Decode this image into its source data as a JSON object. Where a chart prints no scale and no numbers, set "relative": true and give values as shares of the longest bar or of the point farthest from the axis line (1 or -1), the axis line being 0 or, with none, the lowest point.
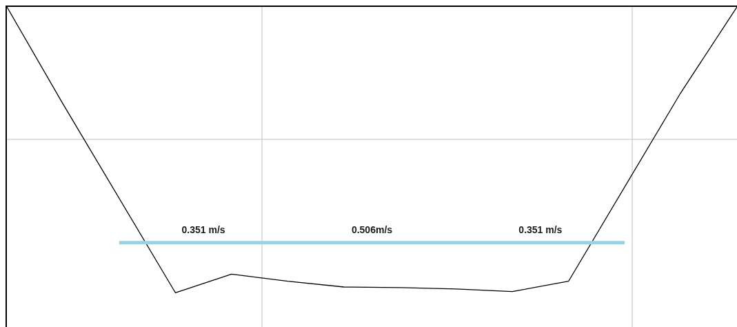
{
  "chart_data": {
    "type": "line",
    "relative": true,
    "categories": [
      null,
      null,
      null,
      null,
      null,
      null,
      null,
      null,
      null,
      null,
      null,
      null,
      null,
      null
    ],
    "series": [
      {
        "color": "#000000",
        "values": [
          1,
          0.66,
          null,
          0,
          0.065,
          0.04,
          0.02,
          0.018,
          0.013,
          0.004,
          0.04,
          null,
          0.7,
          1
        ]
      },
      {
        "color": "#92d5e6",
        "values": [
          null,
          null,
          0.175,
          0.175,
          0.175,
          0.175,
          0.175,
          0.175,
          0.175,
          0.175,
          0.175,
          0.175,
          null,
          null
        ]
      }
    ],
    "annotations": [
      "0.351 m/s",
      "0.506m/s",
      "0.351 m/s"
    ],
    "grid": true,
    "tick_labels": false,
    "marker": "none"
  }
}
